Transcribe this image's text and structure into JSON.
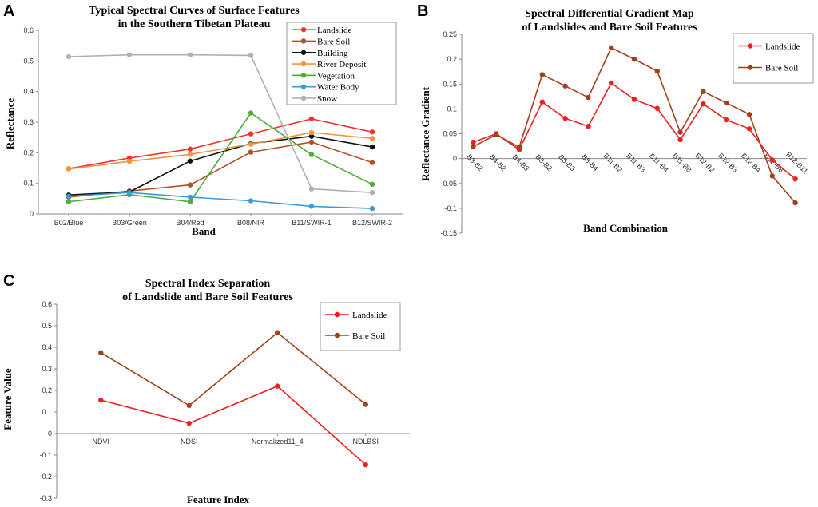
{
  "chart_data": [
    {
      "panel": "A",
      "type": "line",
      "title": [
        "Typical Spectral Curves of Surface Features",
        "in the Southern Tibetan Plateau"
      ],
      "xlabel": "Band",
      "ylabel": "Reflectance",
      "ylim": [
        0,
        0.6
      ],
      "yticks": [
        "0",
        "0.1",
        "0.2",
        "0.3",
        "0.4",
        "0.5",
        "0.6"
      ],
      "categories": [
        "B02/Blue",
        "B03/Green",
        "B04/Red",
        "B08/NIR",
        "B11/SWIR-1",
        "B12/SWIR-2"
      ],
      "legend_position": "top-right",
      "series": [
        {
          "name": "Landslide",
          "color": "#f03232",
          "values": [
            0.148,
            0.183,
            0.212,
            0.262,
            0.311,
            0.268
          ]
        },
        {
          "name": "Bare Soil",
          "color": "#b0502a",
          "values": [
            0.055,
            0.075,
            0.095,
            0.202,
            0.235,
            0.168
          ]
        },
        {
          "name": "Building",
          "color": "#111111",
          "values": [
            0.062,
            0.072,
            0.173,
            0.23,
            0.254,
            0.219
          ]
        },
        {
          "name": "River Deposit",
          "color": "#f5923e",
          "values": [
            0.147,
            0.172,
            0.195,
            0.228,
            0.266,
            0.247
          ]
        },
        {
          "name": "Vegetation",
          "color": "#4caf3a",
          "values": [
            0.04,
            0.063,
            0.04,
            0.33,
            0.194,
            0.097
          ]
        },
        {
          "name": "Water Body",
          "color": "#3a9bd8",
          "values": [
            0.058,
            0.07,
            0.055,
            0.043,
            0.025,
            0.018
          ]
        },
        {
          "name": "Snow",
          "color": "#b0b0b0",
          "values": [
            0.514,
            0.52,
            0.52,
            0.518,
            0.082,
            0.07
          ]
        }
      ]
    },
    {
      "panel": "B",
      "type": "line",
      "title": [
        "Spectral Differential Gradient Map",
        "of Landslides and Bare Soil Features"
      ],
      "xlabel": "Band Combination",
      "ylabel": "Reflectance Gradient",
      "ylim": [
        -0.15,
        0.25
      ],
      "yticks": [
        "-0.15",
        "-0.1",
        "-0.05",
        "0",
        "0.05",
        "0.1",
        "0.15",
        "0.2",
        "0.25"
      ],
      "categories": [
        "B3-B2",
        "B4-B2",
        "B4-B3",
        "B8-B2",
        "B8-B3",
        "B8-B4",
        "B11-B2",
        "B11-B3",
        "B11-B4",
        "B11-B8",
        "B12-B2",
        "B12-B3",
        "B12-B4",
        "B12-B8",
        "B12-B11"
      ],
      "legend_position": "top-right",
      "series": [
        {
          "name": "Landslide",
          "color": "#f01e1e",
          "values": [
            0.033,
            0.05,
            0.018,
            0.114,
            0.081,
            0.065,
            0.152,
            0.119,
            0.101,
            0.038,
            0.11,
            0.078,
            0.06,
            -0.003,
            -0.041
          ]
        },
        {
          "name": "Bare Soil",
          "color": "#a0421c",
          "values": [
            0.024,
            0.048,
            0.023,
            0.169,
            0.146,
            0.123,
            0.223,
            0.2,
            0.176,
            0.053,
            0.135,
            0.112,
            0.089,
            -0.035,
            -0.089
          ]
        }
      ]
    },
    {
      "panel": "C",
      "type": "line",
      "title": [
        "Spectral Index Separation",
        "of Landslide and Bare Soil Features"
      ],
      "xlabel": "Feature Index",
      "ylabel": "Feature Value",
      "ylim": [
        -0.3,
        0.6
      ],
      "yticks": [
        "-0.3",
        "-0.2",
        "-0.1",
        "0",
        "0.1",
        "0.2",
        "0.3",
        "0.4",
        "0.5",
        "0.6"
      ],
      "categories": [
        "NDVI",
        "NDSI",
        "Normalized11_4",
        "NDLBSI"
      ],
      "legend_position": "top-right",
      "series": [
        {
          "name": "Landslide",
          "color": "#f01e1e",
          "values": [
            0.155,
            0.048,
            0.22,
            -0.145
          ]
        },
        {
          "name": "Bare Soil",
          "color": "#a0421c",
          "values": [
            0.375,
            0.13,
            0.468,
            0.135
          ]
        }
      ]
    }
  ]
}
